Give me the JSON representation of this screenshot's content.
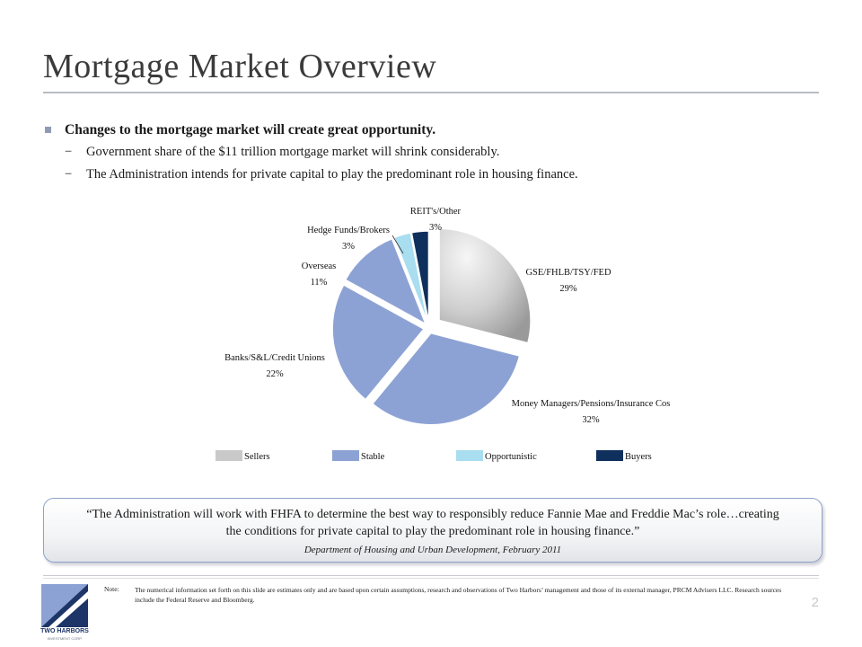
{
  "slide": {
    "title": "Mortgage Market Overview",
    "page_number": "2"
  },
  "bullets": {
    "main": "Changes to the mortgage market will create great opportunity.",
    "dash": "−",
    "sub": [
      "Government share of the $11 trillion mortgage market will shrink considerably.",
      "The Administration intends for private capital to play the predominant role in housing finance."
    ]
  },
  "chart_data": {
    "type": "pie",
    "slices": [
      {
        "label": "GSE/FHLB/TSY/FED",
        "value": 29,
        "value_label": "29%",
        "group": "Sellers"
      },
      {
        "label": "Money Managers/Pensions/Insurance  Cos",
        "value": 32,
        "value_label": "32%",
        "group": "Stable"
      },
      {
        "label": "Banks/S&L/Credit Unions",
        "value": 22,
        "value_label": "22%",
        "group": "Stable"
      },
      {
        "label": "Overseas",
        "value": 11,
        "value_label": "11%",
        "group": "Stable"
      },
      {
        "label": "Hedge Funds/Brokers",
        "value": 3,
        "value_label": "3%",
        "group": "Opportunistic"
      },
      {
        "label": "REIT's/Other",
        "value": 3,
        "value_label": "3%",
        "group": "Buyers"
      }
    ],
    "legend": [
      {
        "name": "Sellers",
        "color": "#c9c9c9"
      },
      {
        "name": "Stable",
        "color": "#8da2d4"
      },
      {
        "name": "Opportunistic",
        "color": "#a9ddf0"
      },
      {
        "name": "Buyers",
        "color": "#0f2f5c"
      }
    ],
    "legend_position": "bottom"
  },
  "quote": {
    "text": "“The Administration will work with FHFA to determine the best way to responsibly reduce Fannie Mae and Freddie Mac’s role…creating the conditions for private capital to play the predominant role in housing finance.”",
    "source": "Department of Housing and Urban Development, February 2011"
  },
  "footer": {
    "note_label": "Note:",
    "note_text": "The numerical information set forth on this slide are estimates only and are based upon certain assumptions, research and observations of Two Harbors’ management and those of its external manager, PRCM Advisers LLC. Research sources include the Federal Reserve and Bloomberg.",
    "logo_text": "TWO HARBORS",
    "logo_subtext": "INVESTMENT CORP."
  }
}
